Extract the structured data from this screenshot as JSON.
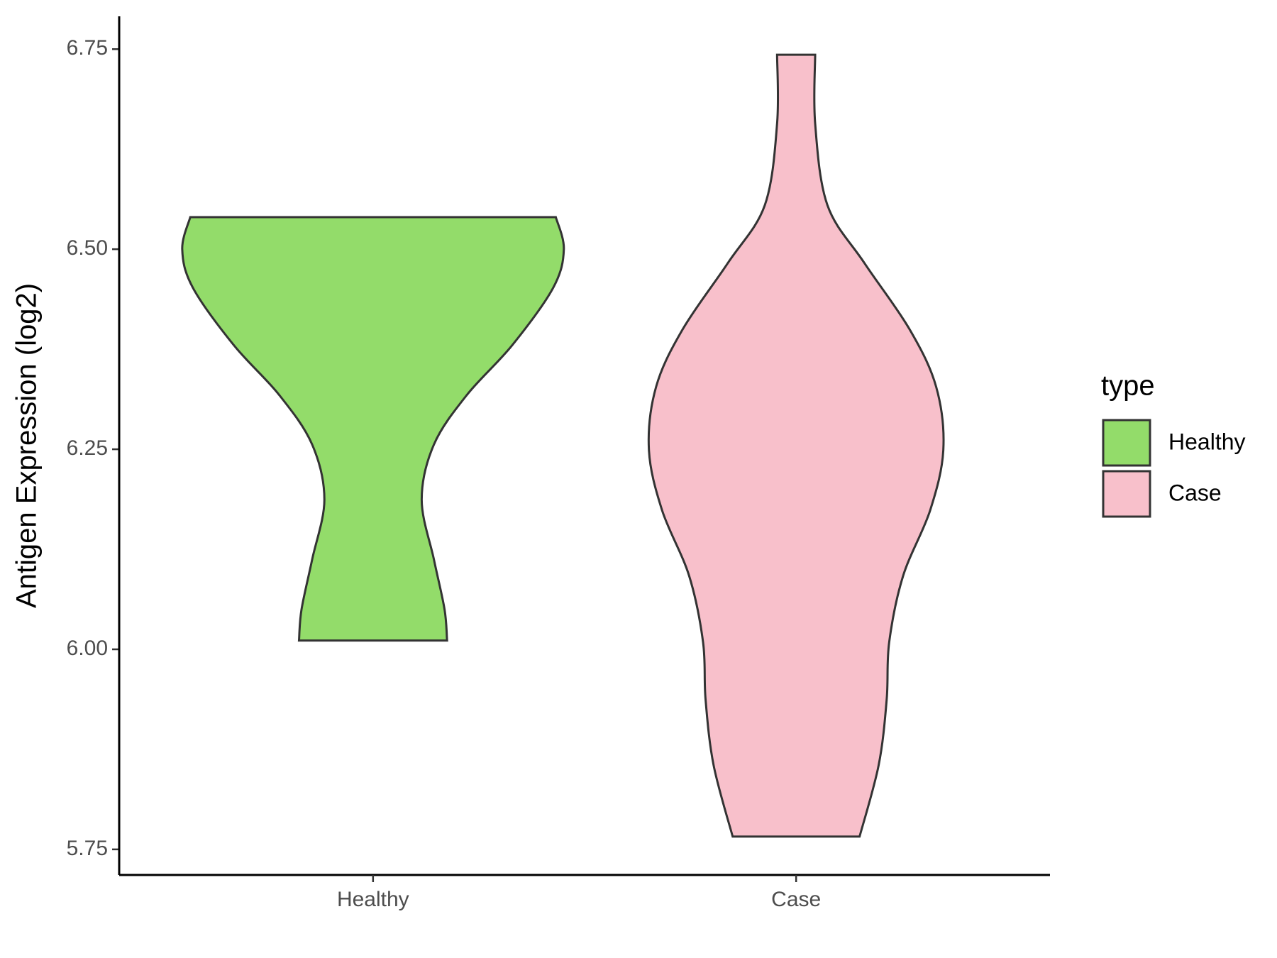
{
  "chart_data": {
    "type": "violin",
    "y_label": "Antigen Expression (log2)",
    "categories": [
      "Healthy",
      "Case"
    ],
    "legend_title": "type",
    "ylim": [
      5.718,
      6.791
    ],
    "yticks": [
      {
        "value": 5.75,
        "label": "5.75"
      },
      {
        "value": 6,
        "label": "6.00"
      },
      {
        "value": 6.25,
        "label": "6.25"
      },
      {
        "value": 6.5,
        "label": "6.50"
      },
      {
        "value": 6.75,
        "label": "6.75"
      }
    ],
    "series": [
      {
        "name": "Healthy",
        "color": "#93dc6a",
        "y": [
          6.54,
          6.5,
          6.452,
          6.38,
          6.318,
          6.256,
          6.187,
          6.112,
          6.05,
          6.011
        ],
        "width": [
          0.432,
          0.451,
          0.426,
          0.329,
          0.222,
          0.144,
          0.115,
          0.144,
          0.169,
          0.175
        ]
      },
      {
        "name": "Case",
        "color": "#f8c0cb",
        "y": [
          6.743,
          6.657,
          6.555,
          6.483,
          6.4,
          6.328,
          6.25,
          6.174,
          6.092,
          6.009,
          5.937,
          5.855,
          5.766
        ],
        "width": [
          0.045,
          0.045,
          0.074,
          0.161,
          0.268,
          0.331,
          0.348,
          0.317,
          0.253,
          0.22,
          0.214,
          0.195,
          0.15
        ]
      }
    ]
  }
}
